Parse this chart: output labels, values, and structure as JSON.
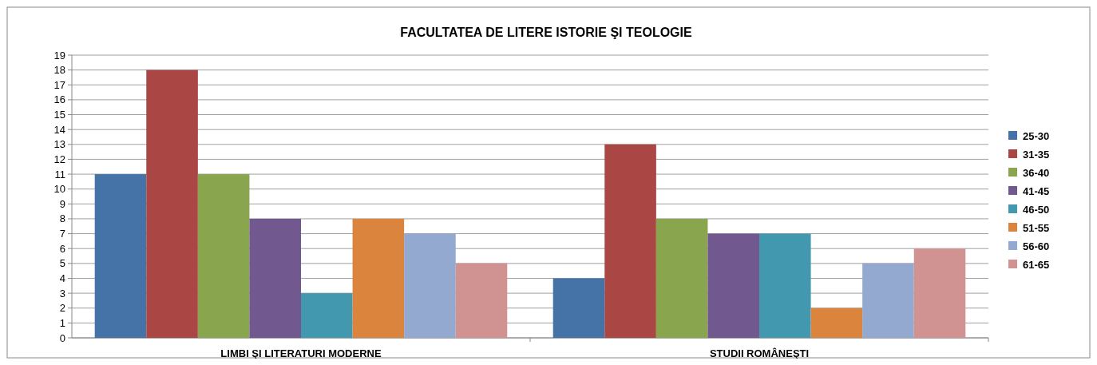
{
  "chart_data": {
    "type": "bar",
    "title": "FACULTATEA DE LITERE ISTORIE ŞI TEOLOGIE",
    "categories": [
      "LIMBI ŞI LITERATURI MODERNE",
      "STUDII ROMÂNEŞTI"
    ],
    "series": [
      {
        "name": "25-30",
        "color": "#4572a7",
        "values": [
          11,
          4
        ]
      },
      {
        "name": "31-35",
        "color": "#aa4643",
        "values": [
          18,
          13
        ]
      },
      {
        "name": "36-40",
        "color": "#89a54e",
        "values": [
          11,
          8
        ]
      },
      {
        "name": "41-45",
        "color": "#71588f",
        "values": [
          8,
          7
        ]
      },
      {
        "name": "46-50",
        "color": "#4198af",
        "values": [
          3,
          7
        ]
      },
      {
        "name": "51-55",
        "color": "#db843d",
        "values": [
          8,
          2
        ]
      },
      {
        "name": "56-60",
        "color": "#93a9cf",
        "values": [
          7,
          5
        ]
      },
      {
        "name": "61-65",
        "color": "#d19392",
        "values": [
          5,
          6
        ]
      }
    ],
    "ylim": [
      0,
      19
    ],
    "yticks": [
      0,
      1,
      2,
      3,
      4,
      5,
      6,
      7,
      8,
      9,
      10,
      11,
      12,
      13,
      14,
      15,
      16,
      17,
      18,
      19
    ],
    "grid": "y",
    "legend": "right"
  }
}
